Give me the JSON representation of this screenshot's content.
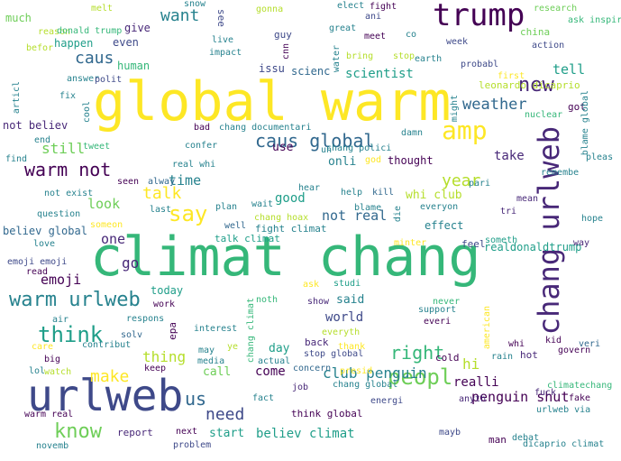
{
  "palette": {
    "yellow": "#fde725",
    "lime": "#b5de2b",
    "green": "#6ece58",
    "teal": "#35b779",
    "sea": "#1f9e89",
    "cyan": "#26828e",
    "blue": "#31688e",
    "indigo": "#3e4989",
    "violet": "#482878",
    "purple": "#440154"
  },
  "words": [
    "climat chang",
    "global warm",
    "urlweb",
    "trump",
    "chang urlweb",
    "amp",
    "caus global",
    "warm urlweb",
    "new",
    "think",
    "say",
    "peopl",
    "know",
    "warm not",
    "talk",
    "right",
    "year",
    "weather",
    "club penguin",
    "make",
    "need",
    "us",
    "caus",
    "want",
    "penguin shut",
    "time",
    "one",
    "go",
    "emoji",
    "not real",
    "still",
    "tell",
    "scientist",
    "take",
    "thing",
    "look",
    "hi",
    "world",
    "good",
    "realli",
    "come",
    "believ climat",
    "effect",
    "onli",
    "say",
    "whi club",
    "human",
    "issu",
    "scienc",
    "not believ",
    "believ global",
    "realdonaldtrump",
    "start",
    "even",
    "much",
    "give",
    "happen",
    "today",
    "call",
    "said",
    "day",
    "thought",
    "leonardo dicaprio",
    "use",
    "got",
    "china",
    "guy",
    "see",
    "research",
    "ask inspir",
    "action",
    "fight climat",
    "cold",
    "talk climat",
    "hot",
    "back",
    "mean",
    "tri",
    "way",
    "fuck",
    "show",
    "impact",
    "real whi",
    "think global",
    "energi",
    "man",
    "debat",
    "dicaprio climat",
    "report",
    "next",
    "problem",
    "warm real",
    "fact",
    "lol",
    "big",
    "air",
    "care",
    "watch",
    "keep",
    "ye",
    "solv",
    "work",
    "interest",
    "ask",
    "never",
    "everi",
    "stop global",
    "chang global",
    "presid",
    "actual",
    "concern",
    "job",
    "anyth",
    "urlweb via",
    "fake",
    "climatechang",
    "govern",
    "kid",
    "veri",
    "whi",
    "rain",
    "support",
    "american",
    "everyth",
    "thank",
    "mayb",
    "novemb",
    "tweet",
    "confer",
    "end",
    "find",
    "seen",
    "alway",
    "not exist",
    "question",
    "last",
    "plan",
    "wait",
    "hear",
    "help",
    "kill",
    "die",
    "everyon",
    "blame",
    "pari",
    "pleas",
    "remembe",
    "hope",
    "someon",
    "minter",
    "feel",
    "someth",
    "studi",
    "emoji emoji",
    "read",
    "love",
    "well",
    "chang hoax",
    "chang documentari",
    "chang polici",
    "bad",
    "damn",
    "nuclear",
    "blame global",
    "might",
    "answer",
    "polit",
    "fix",
    "cool",
    "articl",
    "reason",
    "befor",
    "melt",
    "donald trump",
    "snow",
    "live",
    "cnn",
    "water",
    "bring",
    "meet",
    "co",
    "gonna",
    "great",
    "elect",
    "fight",
    "ani",
    "earth",
    "probabl",
    "week",
    "first",
    "stop",
    "god",
    "un",
    "noth",
    "may",
    "media",
    "chang climat",
    "epa",
    "respons",
    "contribut",
    "may"
  ]
}
